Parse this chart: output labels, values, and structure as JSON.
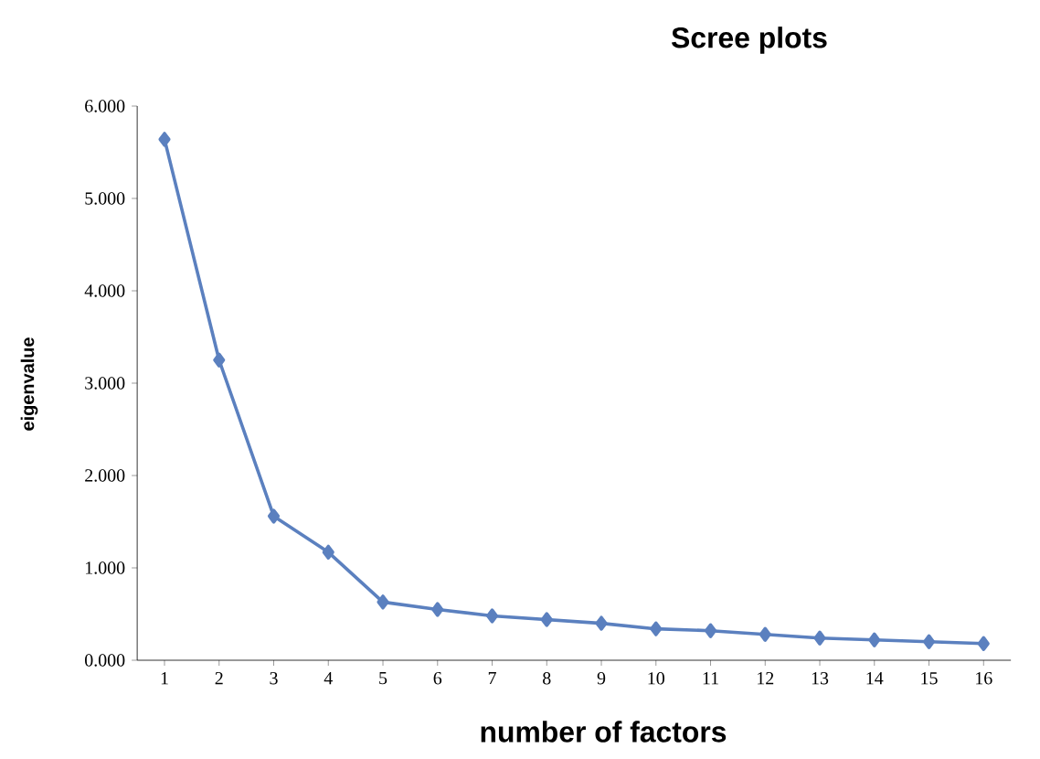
{
  "chart_data": {
    "type": "line",
    "title": "Scree plots",
    "xlabel": "number of factors",
    "ylabel": "eigenvalue",
    "categories": [
      "1",
      "2",
      "3",
      "4",
      "5",
      "6",
      "7",
      "8",
      "9",
      "10",
      "11",
      "12",
      "13",
      "14",
      "15",
      "16"
    ],
    "series": [
      {
        "color": "#5b80bf",
        "values": [
          5.64,
          3.25,
          1.56,
          1.17,
          0.63,
          0.55,
          0.48,
          0.44,
          0.4,
          0.34,
          0.32,
          0.28,
          0.24,
          0.22,
          0.2,
          0.18
        ]
      }
    ],
    "ylim": [
      0,
      6
    ],
    "yticks": [
      {
        "value": 0,
        "label": "0.000"
      },
      {
        "value": 1,
        "label": "1.000"
      },
      {
        "value": 2,
        "label": "2.000"
      },
      {
        "value": 3,
        "label": "3.000"
      },
      {
        "value": 4,
        "label": "4.000"
      },
      {
        "value": 5,
        "label": "5.000"
      },
      {
        "value": 6,
        "label": "6.000"
      }
    ],
    "grid": false,
    "marker": "diamond",
    "line_style": "solid"
  }
}
